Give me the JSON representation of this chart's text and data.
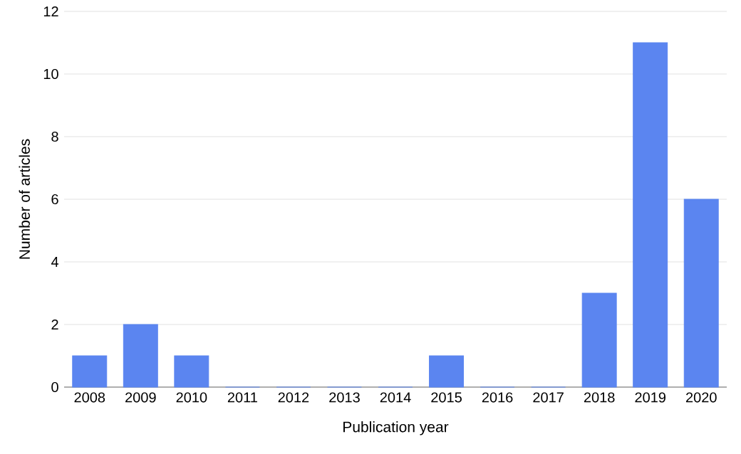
{
  "chart_data": {
    "type": "bar",
    "xlabel": "Publication year",
    "ylabel": "Number of articles",
    "categories": [
      "2008",
      "2009",
      "2010",
      "2011",
      "2012",
      "2013",
      "2014",
      "2015",
      "2016",
      "2017",
      "2018",
      "2019",
      "2020"
    ],
    "values": [
      1,
      2,
      1,
      0,
      0,
      0,
      0,
      1,
      0,
      0,
      3,
      11,
      6
    ],
    "color": "#5b85f0",
    "ylim": [
      0,
      12
    ],
    "yticks": [
      0,
      2,
      4,
      6,
      8,
      10,
      12
    ],
    "grid": "y"
  }
}
